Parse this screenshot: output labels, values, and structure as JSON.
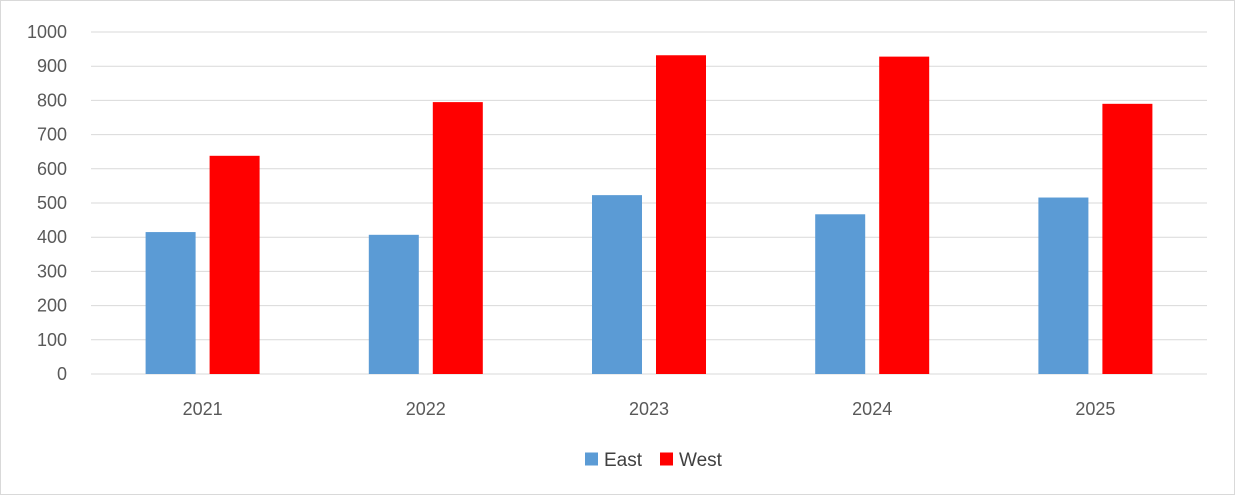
{
  "chart_data": {
    "type": "bar",
    "categories": [
      "2021",
      "2022",
      "2023",
      "2024",
      "2025"
    ],
    "series": [
      {
        "name": "East",
        "color": "#5b9bd5",
        "values": [
          415,
          407,
          523,
          467,
          516
        ]
      },
      {
        "name": "West",
        "color": "#ff0000",
        "values": [
          638,
          795,
          932,
          928,
          790
        ]
      }
    ],
    "ylim": [
      0,
      1000
    ],
    "yticks": [
      0,
      100,
      200,
      300,
      400,
      500,
      600,
      700,
      800,
      900,
      1000
    ],
    "grid": true,
    "gridline_color": "#d9d9d9",
    "legend": "bottom"
  }
}
